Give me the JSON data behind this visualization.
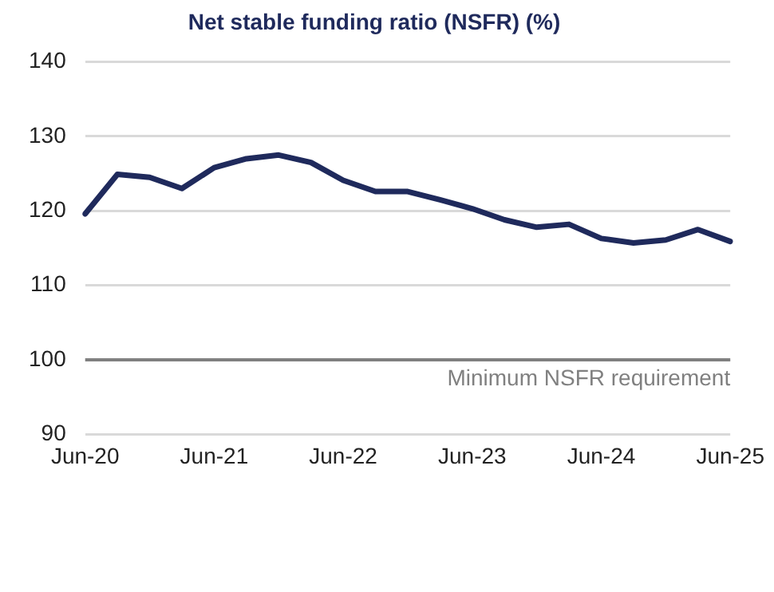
{
  "chart_data": {
    "type": "line",
    "title": "Net stable funding ratio (NSFR) (%)",
    "categories": [
      "Jun-20",
      null,
      null,
      null,
      "Jun-21",
      null,
      null,
      null,
      "Jun-22",
      null,
      null,
      null,
      "Jun-23",
      null,
      null,
      null,
      "Jun-24",
      null,
      null,
      null,
      "Jun-25"
    ],
    "series": [
      {
        "color": "#1f2a5c",
        "values": [
          119.6,
          124.9,
          124.5,
          123,
          125.8,
          127,
          127.5,
          126.5,
          124.1,
          122.6,
          122.6,
          121.5,
          120.3,
          118.8,
          117.8,
          118.2,
          116.3,
          115.7,
          116.1,
          117.5,
          115.9
        ]
      }
    ],
    "ylim": [
      90,
      140
    ],
    "yticks": [
      90,
      100,
      110,
      120,
      130,
      140
    ],
    "grid": "y",
    "legend": false,
    "marker": "none",
    "line_style": "solid",
    "ref_lines": [
      {
        "axis": "y",
        "value": 100,
        "label": "Minimum NSFR requirement",
        "color": "#808080",
        "line_style": "solid"
      }
    ]
  }
}
